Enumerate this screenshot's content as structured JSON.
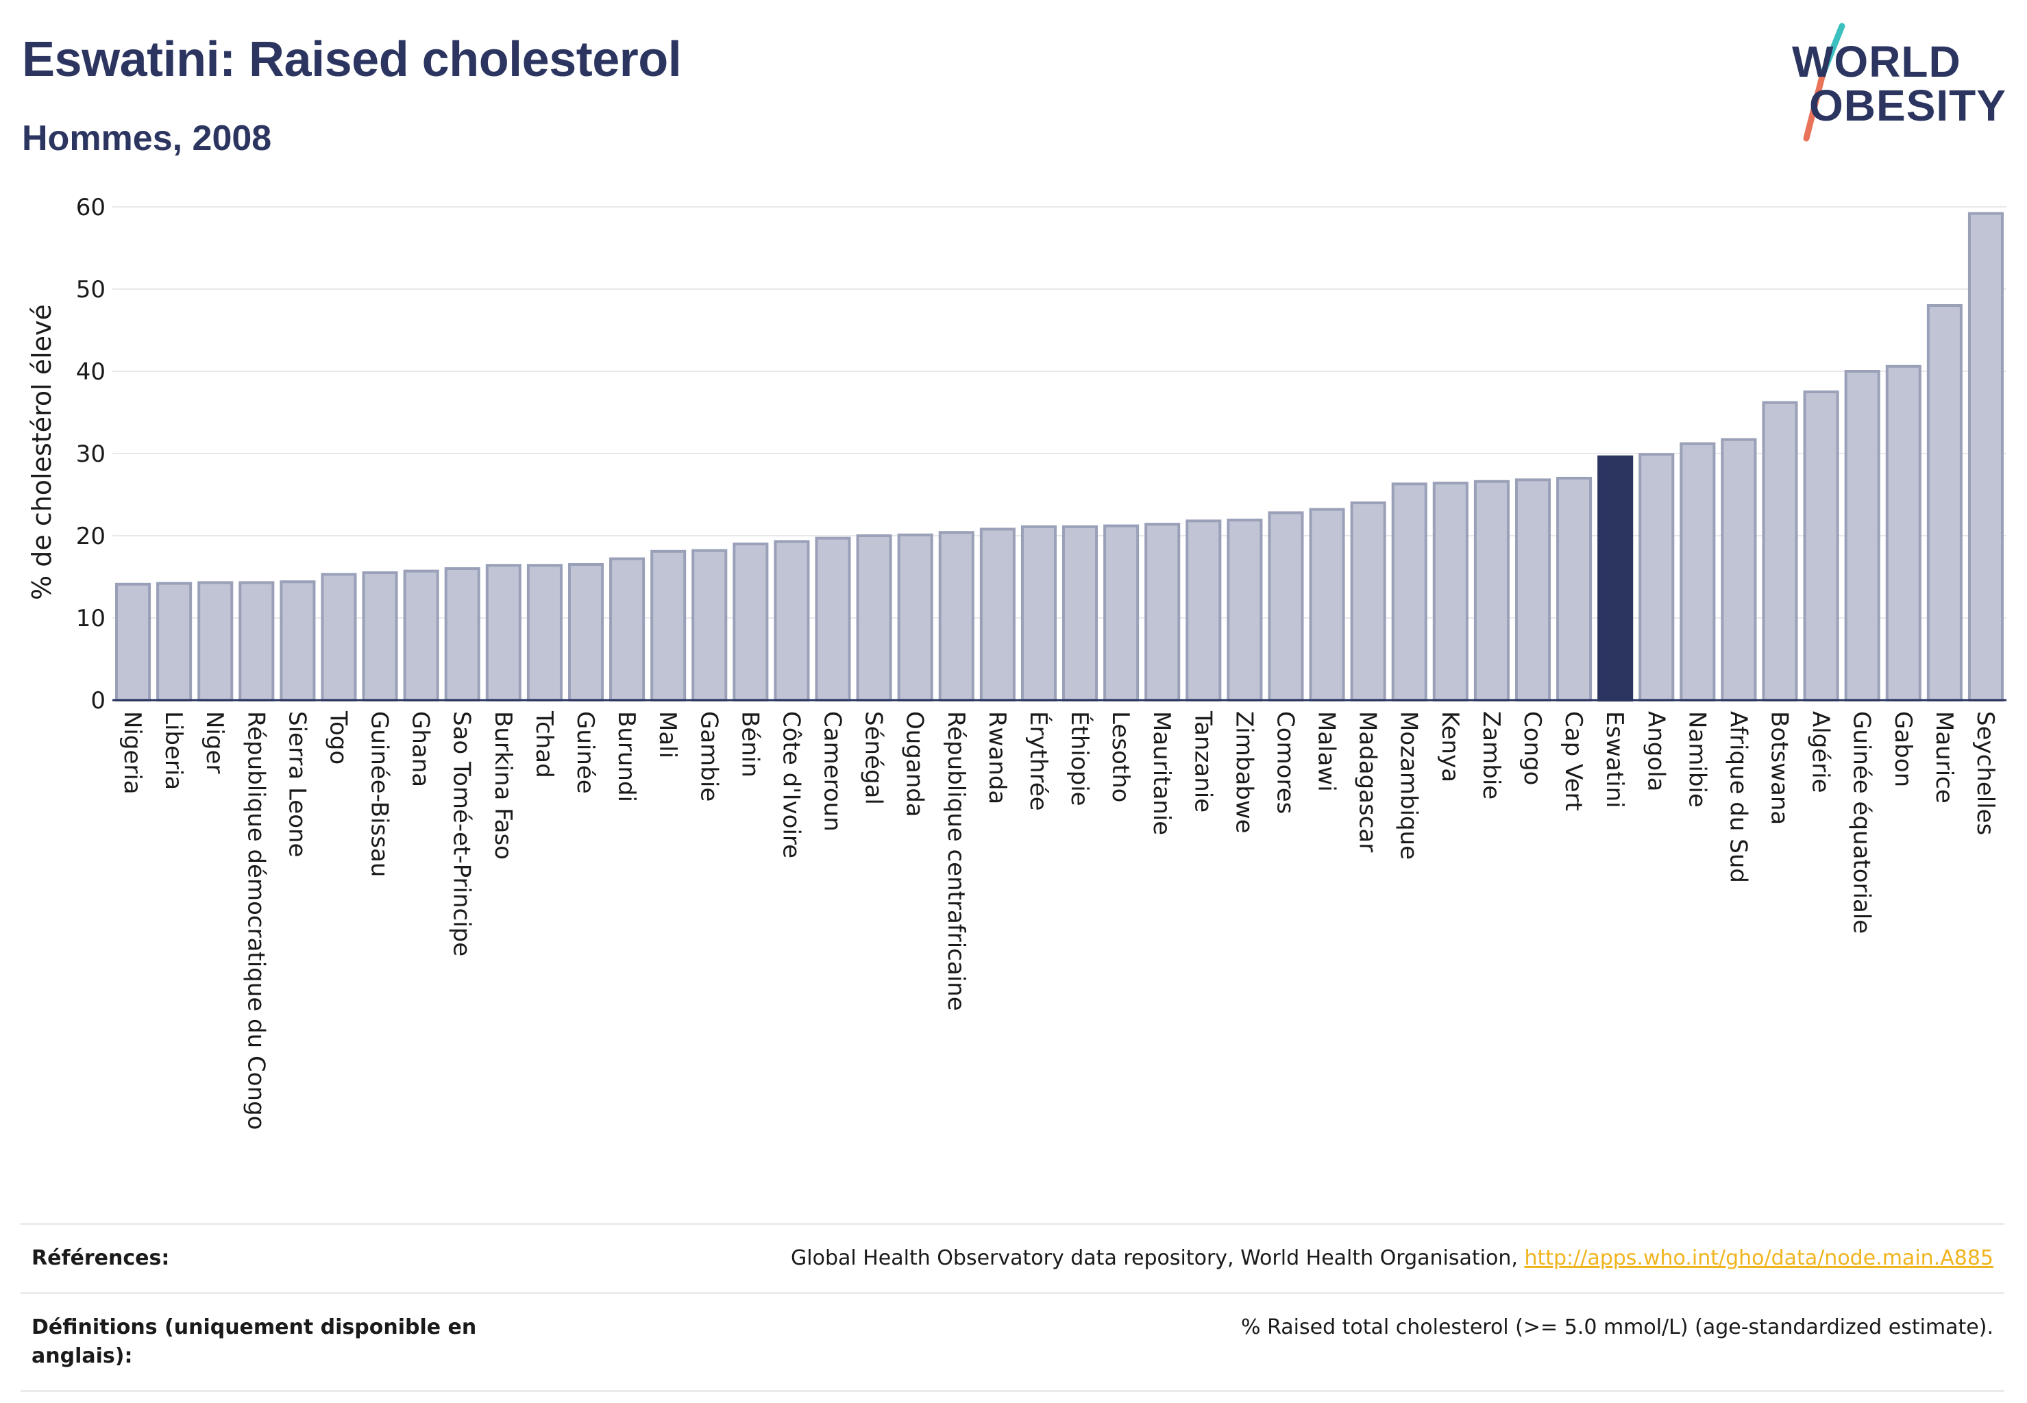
{
  "header": {
    "title": "Eswatini: Raised cholesterol",
    "subtitle": "Hommes, 2008"
  },
  "logo": {
    "line1": "WORLD",
    "line2": "OBESITY",
    "colors": {
      "text": "#2b3560",
      "slash_top": "#3bbfbf",
      "slash_bottom": "#e8735a"
    }
  },
  "chart_data": {
    "type": "bar",
    "title": "",
    "xlabel": "",
    "ylabel": "% de cholestérol élevé",
    "ylim": [
      0,
      60
    ],
    "yticks": [
      0,
      10,
      20,
      30,
      40,
      50,
      60
    ],
    "grid": true,
    "highlight": "Eswatini",
    "colors": {
      "bar": "#c0c4d4",
      "bar_border": "#9aa0b8",
      "highlight": "#2b3560"
    },
    "categories": [
      "Nigeria",
      "Liberia",
      "Niger",
      "République démocratique du Congo",
      "Sierra Leone",
      "Togo",
      "Guinée-Bissau",
      "Ghana",
      "Sao Tomé-et-Principe",
      "Burkina Faso",
      "Tchad",
      "Guinée",
      "Burundi",
      "Mali",
      "Gambie",
      "Bénin",
      "Côte d'Ivoire",
      "Cameroun",
      "Sénégal",
      "Ouganda",
      "République centrafricaine",
      "Rwanda",
      "Érythrée",
      "Éthiopie",
      "Lesotho",
      "Mauritanie",
      "Tanzanie",
      "Zimbabwe",
      "Comores",
      "Malawi",
      "Madagascar",
      "Mozambique",
      "Kenya",
      "Zambie",
      "Congo",
      "Cap Vert",
      "Eswatini",
      "Angola",
      "Namibie",
      "Afrique du Sud",
      "Botswana",
      "Algérie",
      "Guinée équatoriale",
      "Gabon",
      "Maurice",
      "Seychelles"
    ],
    "values": [
      14.1,
      14.2,
      14.3,
      14.3,
      14.4,
      15.3,
      15.5,
      15.7,
      16.0,
      16.4,
      16.4,
      16.5,
      17.2,
      18.1,
      18.2,
      19.0,
      19.3,
      19.7,
      20.0,
      20.1,
      20.4,
      20.8,
      21.1,
      21.1,
      21.2,
      21.4,
      21.8,
      21.9,
      22.8,
      23.2,
      24.0,
      26.3,
      26.4,
      26.6,
      26.8,
      27.0,
      29.6,
      29.9,
      31.2,
      31.7,
      36.2,
      37.5,
      40.0,
      40.6,
      48.0,
      59.2
    ]
  },
  "references": {
    "sources_label": "Références:",
    "sources_text": "Global Health Observatory data repository, World Health Organisation, ",
    "sources_link": "http://apps.who.int/gho/data/node.main.A885",
    "definitions_label": "Définitions (uniquement disponible en anglais):",
    "definitions_text": "% Raised total cholesterol (>= 5.0 mmol/L) (age-standardized estimate)."
  }
}
